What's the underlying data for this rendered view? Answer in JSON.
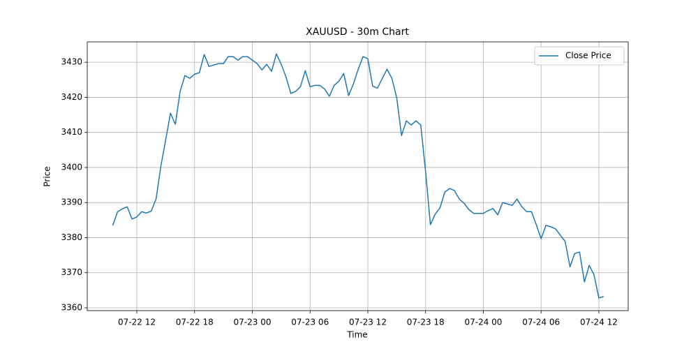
{
  "chart_data": {
    "type": "line",
    "title": "XAUUSD - 30m Chart",
    "x_label": "Time",
    "y_label": "Price",
    "x": [
      "07-22 09:30",
      "07-22 10:00",
      "07-22 10:30",
      "07-22 11:00",
      "07-22 11:30",
      "07-22 12:00",
      "07-22 12:30",
      "07-22 13:00",
      "07-22 13:30",
      "07-22 14:00",
      "07-22 14:30",
      "07-22 15:00",
      "07-22 15:30",
      "07-22 16:00",
      "07-22 16:30",
      "07-22 17:00",
      "07-22 17:30",
      "07-22 18:00",
      "07-22 18:30",
      "07-22 19:00",
      "07-22 19:30",
      "07-22 20:00",
      "07-22 20:30",
      "07-22 21:00",
      "07-22 21:30",
      "07-22 22:00",
      "07-22 22:30",
      "07-22 23:00",
      "07-22 23:30",
      "07-23 00:00",
      "07-23 00:30",
      "07-23 01:00",
      "07-23 01:30",
      "07-23 02:00",
      "07-23 02:30",
      "07-23 03:00",
      "07-23 03:30",
      "07-23 04:00",
      "07-23 04:30",
      "07-23 05:00",
      "07-23 05:30",
      "07-23 06:00",
      "07-23 06:30",
      "07-23 07:00",
      "07-23 07:30",
      "07-23 08:00",
      "07-23 08:30",
      "07-23 09:00",
      "07-23 09:30",
      "07-23 10:00",
      "07-23 10:30",
      "07-23 11:00",
      "07-23 11:30",
      "07-23 12:00",
      "07-23 12:30",
      "07-23 13:00",
      "07-23 13:30",
      "07-23 14:00",
      "07-23 14:30",
      "07-23 15:00",
      "07-23 15:30",
      "07-23 16:00",
      "07-23 16:30",
      "07-23 17:00",
      "07-23 17:30",
      "07-23 18:00",
      "07-23 18:30",
      "07-23 19:00",
      "07-23 19:30",
      "07-23 20:00",
      "07-23 20:30",
      "07-23 21:00",
      "07-23 21:30",
      "07-23 22:00",
      "07-23 22:30",
      "07-23 23:00",
      "07-23 23:30",
      "07-24 00:00",
      "07-24 00:30",
      "07-24 01:00",
      "07-24 01:30",
      "07-24 02:00",
      "07-24 02:30",
      "07-24 03:00",
      "07-24 03:30",
      "07-24 04:00",
      "07-24 04:30",
      "07-24 05:00",
      "07-24 05:30",
      "07-24 06:00",
      "07-24 06:30",
      "07-24 07:00",
      "07-24 07:30",
      "07-24 08:00",
      "07-24 08:30",
      "07-24 09:00",
      "07-24 09:30",
      "07-24 10:00",
      "07-24 10:30",
      "07-24 11:00",
      "07-24 11:30",
      "07-24 12:00",
      "07-24 12:30"
    ],
    "series": [
      {
        "name": "Close Price",
        "color": "#1f77b4",
        "values": [
          3383.5,
          3387.4,
          3388.2,
          3388.8,
          3385.3,
          3385.9,
          3387.4,
          3387.0,
          3387.6,
          3391.0,
          3400.4,
          3407.9,
          3415.5,
          3412.3,
          3421.7,
          3426.2,
          3425.4,
          3426.6,
          3427.0,
          3432.2,
          3428.8,
          3429.2,
          3429.6,
          3429.6,
          3431.6,
          3431.6,
          3430.6,
          3431.6,
          3431.6,
          3430.6,
          3429.6,
          3427.8,
          3429.4,
          3427.4,
          3432.4,
          3429.4,
          3425.8,
          3421.1,
          3421.7,
          3423.0,
          3427.6,
          3423.0,
          3423.4,
          3423.4,
          3422.4,
          3420.3,
          3423.4,
          3424.6,
          3426.8,
          3420.5,
          3423.8,
          3428.0,
          3431.6,
          3431.0,
          3423.2,
          3422.6,
          3425.4,
          3428.0,
          3425.4,
          3419.9,
          3409.1,
          3413.3,
          3412.1,
          3413.3,
          3412.1,
          3398.8,
          3383.7,
          3386.7,
          3388.5,
          3393.0,
          3394.0,
          3393.4,
          3391.0,
          3389.8,
          3388.0,
          3386.9,
          3386.9,
          3386.9,
          3387.7,
          3388.3,
          3386.5,
          3390.0,
          3389.6,
          3389.2,
          3391.0,
          3388.8,
          3387.4,
          3387.4,
          3383.7,
          3379.7,
          3383.5,
          3383.1,
          3382.5,
          3380.7,
          3378.9,
          3371.7,
          3375.5,
          3375.9,
          3367.4,
          3372.1,
          3369.4,
          3362.8,
          3363.2
        ]
      }
    ],
    "xlim": [
      "07-22 06:51",
      "07-24 15:03"
    ],
    "xticks": [
      "07-22 12",
      "07-22 18",
      "07-23 00",
      "07-23 06",
      "07-23 12",
      "07-23 18",
      "07-24 00",
      "07-24 06",
      "07-24 12"
    ],
    "ylim": [
      3359.2,
      3435.8
    ],
    "yticks": [
      3360,
      3370,
      3380,
      3390,
      3400,
      3410,
      3420,
      3430
    ],
    "grid": true,
    "legend": "upper right"
  }
}
